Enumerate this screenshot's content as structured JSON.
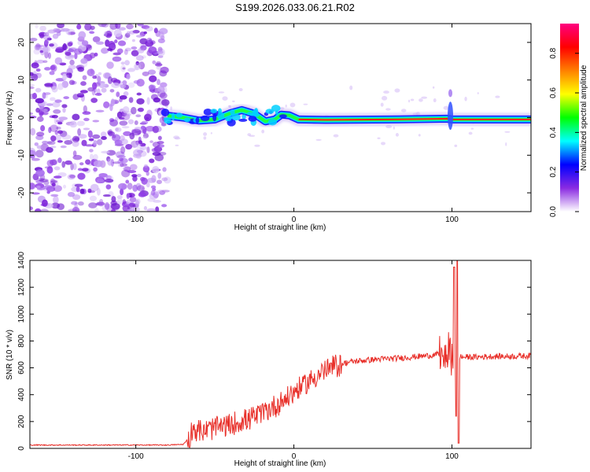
{
  "title": "S199.2026.033.06.21.R02",
  "chart_data": [
    {
      "type": "heatmap",
      "name": "spectrogram",
      "xlabel": "Height of straight line (km)",
      "ylabel": "Frequency (Hz)",
      "xlim": [
        -167,
        150
      ],
      "ylim": [
        -25,
        25
      ],
      "xticks": [
        -100,
        0,
        100
      ],
      "yticks": [
        -20,
        -10,
        0,
        10,
        20
      ],
      "ridge_frequency_hz": [
        {
          "x": -80,
          "y": 0.5
        },
        {
          "x": -70,
          "y": 0.0
        },
        {
          "x": -60,
          "y": -0.8
        },
        {
          "x": -50,
          "y": -0.5
        },
        {
          "x": -40,
          "y": 1.2
        },
        {
          "x": -33,
          "y": 2.0
        },
        {
          "x": -25,
          "y": 1.0
        },
        {
          "x": -18,
          "y": -1.0
        },
        {
          "x": -12,
          "y": -0.5
        },
        {
          "x": -8,
          "y": 0.8
        },
        {
          "x": -3,
          "y": 0.6
        },
        {
          "x": 3,
          "y": -0.5
        },
        {
          "x": 20,
          "y": -0.6
        },
        {
          "x": 60,
          "y": -0.5
        },
        {
          "x": 97,
          "y": -0.3
        },
        {
          "x": 100,
          "y": -0.5
        },
        {
          "x": 150,
          "y": -0.5
        }
      ],
      "colorbar": {
        "label": "Normalized spectral amplitude",
        "range": [
          0,
          0.95
        ],
        "ticks": [
          "0.0",
          "0.2",
          "0.4",
          "0.6",
          "0.8"
        ],
        "colors": [
          "#ffffff",
          "#8a2be2",
          "#0000ff",
          "#00ffff",
          "#00ff00",
          "#ffff00",
          "#ff8000",
          "#ff0000",
          "#ff0080"
        ]
      }
    },
    {
      "type": "line",
      "name": "snr",
      "xlabel": "Height of straight line (km)",
      "ylabel": "SNR (10 * v/v)",
      "xlim": [
        -167,
        150
      ],
      "ylim": [
        0,
        1400
      ],
      "xticks": [
        -100,
        0,
        100
      ],
      "yticks": [
        0,
        200,
        400,
        600,
        800,
        1000,
        1200,
        1400
      ],
      "color": "#e8302a",
      "series": [
        {
          "name": "SNR",
          "points": [
            {
              "x": -167,
              "y": 25
            },
            {
              "x": -140,
              "y": 25
            },
            {
              "x": -110,
              "y": 25
            },
            {
              "x": -80,
              "y": 25
            },
            {
              "x": -70,
              "y": 30
            },
            {
              "x": -66,
              "y": 80
            },
            {
              "x": -64,
              "y": 150
            },
            {
              "x": -58,
              "y": 120
            },
            {
              "x": -52,
              "y": 150
            },
            {
              "x": -46,
              "y": 160
            },
            {
              "x": -40,
              "y": 170
            },
            {
              "x": -34,
              "y": 200
            },
            {
              "x": -28,
              "y": 220
            },
            {
              "x": -22,
              "y": 250
            },
            {
              "x": -16,
              "y": 290
            },
            {
              "x": -10,
              "y": 330
            },
            {
              "x": -4,
              "y": 380
            },
            {
              "x": 0,
              "y": 420
            },
            {
              "x": 6,
              "y": 470
            },
            {
              "x": 12,
              "y": 520
            },
            {
              "x": 18,
              "y": 570
            },
            {
              "x": 24,
              "y": 600
            },
            {
              "x": 30,
              "y": 630
            },
            {
              "x": 36,
              "y": 645
            },
            {
              "x": 44,
              "y": 655
            },
            {
              "x": 54,
              "y": 665
            },
            {
              "x": 64,
              "y": 670
            },
            {
              "x": 74,
              "y": 680
            },
            {
              "x": 84,
              "y": 690
            },
            {
              "x": 92,
              "y": 700
            },
            {
              "x": 98,
              "y": 720
            },
            {
              "x": 102,
              "y": 700
            },
            {
              "x": 106,
              "y": 680
            },
            {
              "x": 115,
              "y": 680
            },
            {
              "x": 125,
              "y": 685
            },
            {
              "x": 135,
              "y": 685
            },
            {
              "x": 150,
              "y": 690
            }
          ]
        }
      ]
    }
  ]
}
